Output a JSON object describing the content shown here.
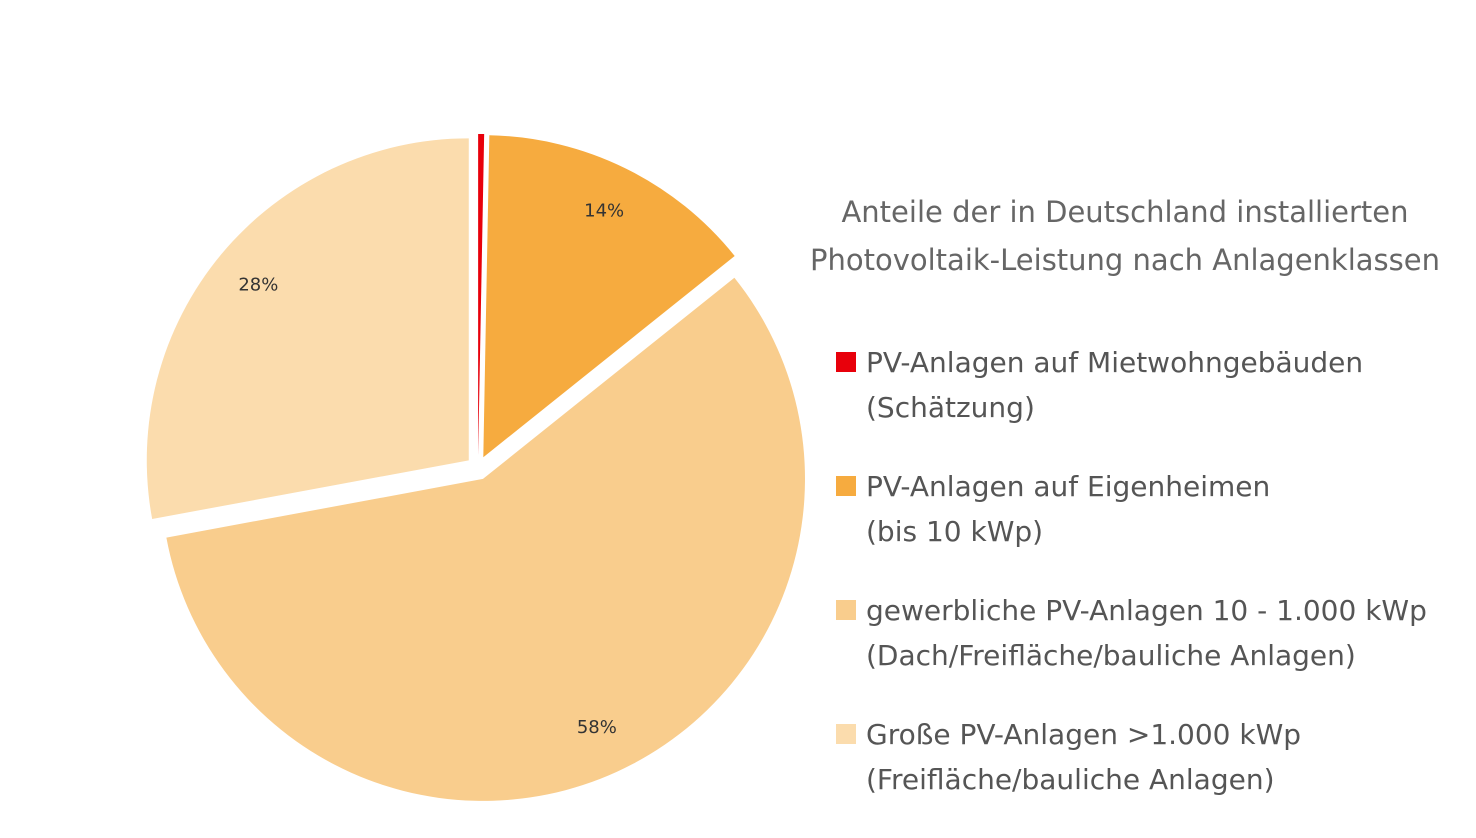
{
  "chart_data": {
    "type": "pie",
    "title": "Anteile der in Deutschland installierten\nPhotovoltaik-Leistung nach Anlagenklassen",
    "categories": [
      "PV-Anlagen auf Mietwohngebäuden\n(Schätzung)",
      "PV-Anlagen auf Eigenheimen\n(bis 10 kWp)",
      "gewerbliche PV-Anlagen 10 - 1.000 kWp\n(Dach/Freifläche/bauliche Anlagen)",
      "Große PV-Anlagen >1.000 kWp\n(Freifläche/bauliche Anlagen)"
    ],
    "values": [
      0.3,
      14,
      58,
      28
    ],
    "value_labels": [
      null,
      "14%",
      "58%",
      "28%"
    ],
    "colors": [
      "#e8000b",
      "#f6ab3f",
      "#f9cd8d",
      "#fbdcad"
    ]
  }
}
